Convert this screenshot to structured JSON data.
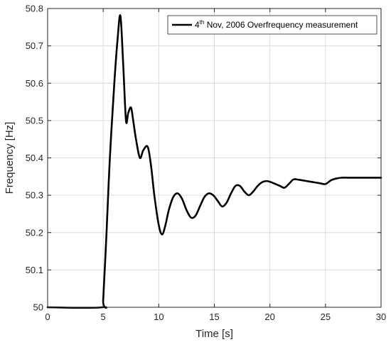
{
  "chart_data": {
    "type": "line",
    "title": "",
    "xlabel": "Time [s]",
    "ylabel": "Frequency [Hz]",
    "xlim": [
      0,
      30
    ],
    "ylim": [
      50,
      50.8
    ],
    "xticks": [
      0,
      5,
      10,
      15,
      20,
      25,
      30
    ],
    "yticks": [
      50,
      50.1,
      50.2,
      50.3,
      50.4,
      50.5,
      50.6,
      50.7,
      50.8
    ],
    "xtick_labels": [
      "0",
      "5",
      "10",
      "15",
      "20",
      "25",
      "30"
    ],
    "ytick_labels": [
      "50",
      "50.1",
      "50.2",
      "50.3",
      "50.4",
      "50.5",
      "50.6",
      "50.7",
      "50.8"
    ],
    "grid": true,
    "legend_position": "top-right",
    "legend": {
      "prefix": "4",
      "superscript": "th",
      "suffix": " Nov, 2006 Overfrequency measurement"
    },
    "line_color": "#000000",
    "series": [
      {
        "name": "4th Nov, 2006 Overfrequency measurement",
        "x": [
          0,
          4.9,
          5.0,
          5.3,
          5.6,
          6.0,
          6.3,
          6.55,
          6.8,
          7.05,
          7.25,
          7.5,
          7.7,
          7.95,
          8.3,
          8.6,
          9.0,
          9.3,
          9.6,
          10.0,
          10.3,
          10.6,
          10.9,
          11.3,
          11.7,
          12.1,
          12.5,
          12.9,
          13.3,
          13.7,
          14.1,
          14.5,
          14.9,
          15.3,
          15.7,
          16.1,
          16.5,
          16.9,
          17.3,
          17.7,
          18.1,
          18.5,
          18.9,
          19.3,
          19.7,
          20.1,
          20.5,
          20.9,
          21.3,
          21.7,
          22.1,
          22.5,
          22.9,
          23.3,
          23.7,
          24.1,
          24.5,
          25.0,
          25.5,
          26.0,
          26.5,
          27.0,
          27.5,
          28.0,
          28.5,
          29.0,
          29.5,
          30.0
        ],
        "y": [
          50.0,
          50.0,
          50.02,
          50.2,
          50.4,
          50.6,
          50.72,
          50.78,
          50.65,
          50.5,
          50.52,
          50.535,
          50.5,
          50.45,
          50.4,
          50.42,
          50.43,
          50.38,
          50.3,
          50.22,
          50.195,
          50.22,
          50.26,
          50.295,
          50.305,
          50.29,
          50.26,
          50.24,
          50.245,
          50.27,
          50.295,
          50.305,
          50.3,
          50.285,
          50.27,
          50.28,
          50.305,
          50.325,
          50.325,
          50.31,
          50.3,
          50.31,
          50.325,
          50.335,
          50.338,
          50.335,
          50.33,
          50.325,
          50.32,
          50.33,
          50.342,
          50.342,
          50.34,
          50.338,
          50.336,
          50.334,
          50.332,
          50.33,
          50.34,
          50.345,
          50.347,
          50.347,
          50.347,
          50.347,
          50.347,
          50.347,
          50.347,
          50.347
        ]
      }
    ]
  }
}
